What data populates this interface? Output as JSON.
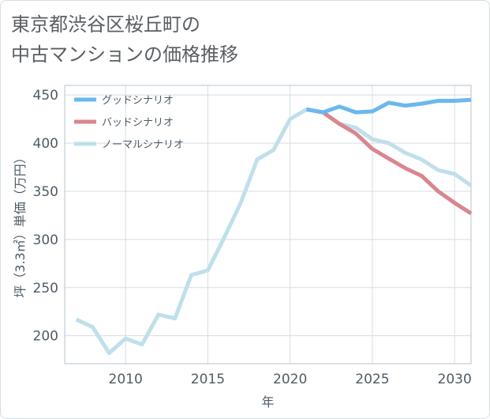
{
  "title_lines": [
    "東京都渋谷区桜丘町の",
    "中古マンションの価格推移"
  ],
  "chart_data": {
    "type": "line",
    "title": "東京都渋谷区桜丘町の中古マンションの価格推移",
    "xlabel": "年",
    "ylabel": "坪（3.3㎡）単価（万円）",
    "xlim": [
      2006.3,
      2031
    ],
    "ylim": [
      171,
      460
    ],
    "x_ticks": [
      2010,
      2015,
      2020,
      2025,
      2030
    ],
    "y_ticks": [
      200,
      250,
      300,
      350,
      400,
      450
    ],
    "grid": true,
    "legend_position": "top-left",
    "series": [
      {
        "name": "グッドシナリオ",
        "color": "#6ab8ee",
        "x": [
          2021,
          2022,
          2023,
          2024,
          2025,
          2026,
          2027,
          2028,
          2029,
          2030,
          2031
        ],
        "y": [
          435,
          432,
          438,
          432,
          433,
          442,
          439,
          441,
          444,
          444,
          445
        ]
      },
      {
        "name": "バッドシナリオ",
        "color": "#d9868e",
        "x": [
          2021,
          2022,
          2023,
          2024,
          2025,
          2026,
          2027,
          2028,
          2029,
          2030,
          2031
        ],
        "y": [
          435,
          432,
          420,
          410,
          394,
          384,
          374,
          366,
          350,
          338,
          327
        ]
      },
      {
        "name": "ノーマルシナリオ",
        "color": "#bfe0ea",
        "x": [
          2007,
          2008,
          2009,
          2010,
          2011,
          2012,
          2013,
          2014,
          2015,
          2016,
          2017,
          2018,
          2019,
          2020,
          2021,
          2022,
          2023,
          2024,
          2025,
          2026,
          2027,
          2028,
          2029,
          2030,
          2031
        ],
        "y": [
          217,
          209,
          182,
          197,
          191,
          222,
          218,
          263,
          268,
          302,
          338,
          383,
          393,
          425,
          435,
          432,
          420,
          416,
          404,
          400,
          390,
          383,
          372,
          368,
          356
        ]
      }
    ]
  }
}
